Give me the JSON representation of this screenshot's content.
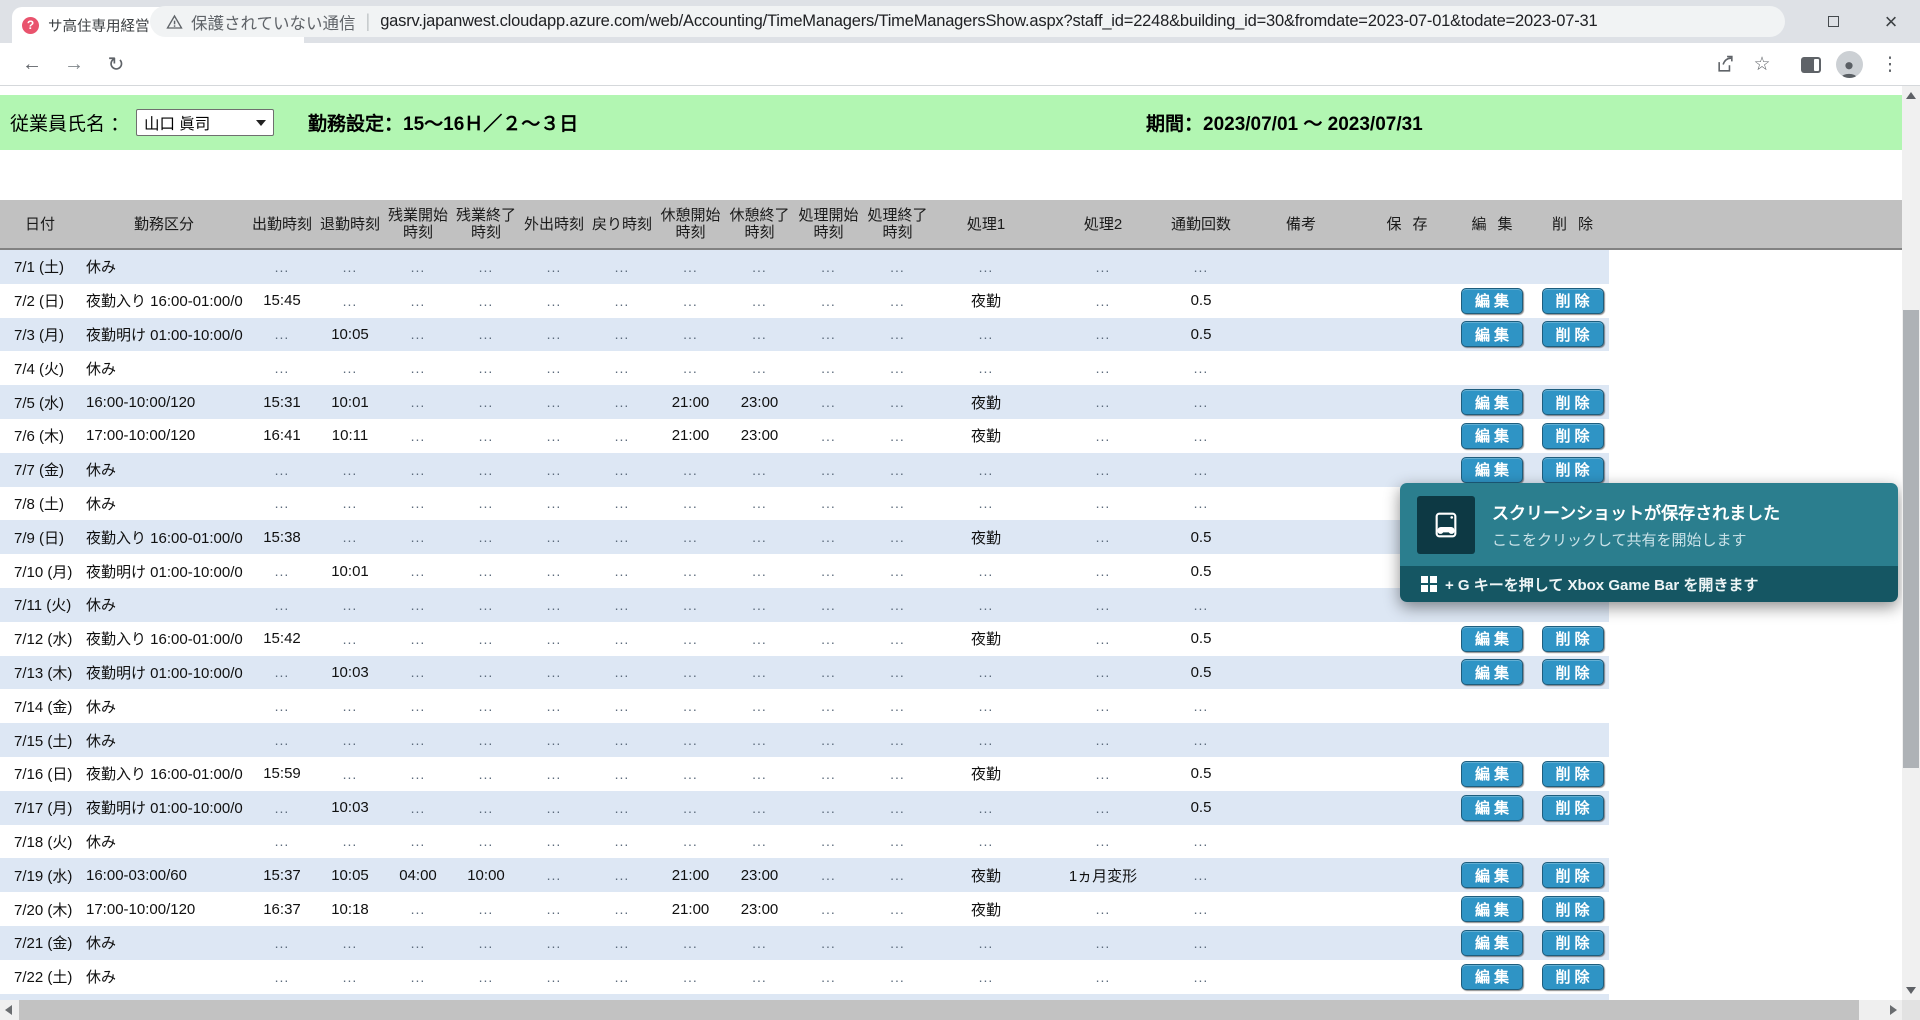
{
  "browser": {
    "tab_title": "サ高住専用経営ソフトさつきちゃん",
    "favicon_glyph": "?",
    "security_label": "保護されていない通信",
    "url": "gasrv.japanwest.cloudapp.azure.com/web/Accounting/TimeManagers/TimeManagersShow.aspx?staff_id=2248&building_id=30&fromdate=2023-07-01&todate=2023-07-31"
  },
  "greenbar": {
    "employee_label": "従業員氏名 ：",
    "employee_name": "山口 眞司",
    "shift_setting": "勤務設定：15～16Ｈ／２～３日",
    "period": "期間：2023/07/01 ～ 2023/07/31"
  },
  "table": {
    "columns": [
      "日付",
      "勤務区分",
      "出勤時刻",
      "退勤時刻",
      "残業開始時刻",
      "残業終了時刻",
      "外出時刻",
      "戻り時刻",
      "休憩開始時刻",
      "休憩終了時刻",
      "処理開始時刻",
      "処理終了時刻",
      "処理1",
      "処理2",
      "通勤回数",
      "備考",
      "保存",
      "編集",
      "削除"
    ],
    "edit_button": "編集",
    "delete_button": "削除",
    "rows": [
      {
        "cells": [
          "7/1 (土)",
          "休み",
          "...",
          "...",
          "...",
          "...",
          "...",
          "...",
          "...",
          "...",
          "...",
          "...",
          "...",
          "...",
          "...",
          ""
        ],
        "buttons": false
      },
      {
        "cells": [
          "7/2 (日)",
          "夜勤入り 16:00-01:00/0",
          "15:45",
          "...",
          "...",
          "...",
          "...",
          "...",
          "...",
          "...",
          "...",
          "...",
          "夜勤",
          "...",
          "0.5",
          ""
        ],
        "buttons": true
      },
      {
        "cells": [
          "7/3 (月)",
          "夜勤明け 01:00-10:00/0",
          "...",
          "10:05",
          "...",
          "...",
          "...",
          "...",
          "...",
          "...",
          "...",
          "...",
          "...",
          "...",
          "0.5",
          ""
        ],
        "buttons": true
      },
      {
        "cells": [
          "7/4 (火)",
          "休み",
          "...",
          "...",
          "...",
          "...",
          "...",
          "...",
          "...",
          "...",
          "...",
          "...",
          "...",
          "...",
          "...",
          ""
        ],
        "buttons": false
      },
      {
        "cells": [
          "7/5 (水)",
          "16:00-10:00/120",
          "15:31",
          "10:01",
          "...",
          "...",
          "...",
          "...",
          "21:00",
          "23:00",
          "...",
          "...",
          "夜勤",
          "...",
          "...",
          ""
        ],
        "buttons": true
      },
      {
        "cells": [
          "7/6 (木)",
          "17:00-10:00/120",
          "16:41",
          "10:11",
          "...",
          "...",
          "...",
          "...",
          "21:00",
          "23:00",
          "...",
          "...",
          "夜勤",
          "...",
          "...",
          ""
        ],
        "buttons": true
      },
      {
        "cells": [
          "7/7 (金)",
          "休み",
          "...",
          "...",
          "...",
          "...",
          "...",
          "...",
          "...",
          "...",
          "...",
          "...",
          "...",
          "...",
          "...",
          ""
        ],
        "buttons": true
      },
      {
        "cells": [
          "7/8 (土)",
          "休み",
          "...",
          "...",
          "...",
          "...",
          "...",
          "...",
          "...",
          "...",
          "...",
          "...",
          "...",
          "...",
          "...",
          ""
        ],
        "buttons": false
      },
      {
        "cells": [
          "7/9 (日)",
          "夜勤入り 16:00-01:00/0",
          "15:38",
          "...",
          "...",
          "...",
          "...",
          "...",
          "...",
          "...",
          "...",
          "...",
          "夜勤",
          "...",
          "0.5",
          ""
        ],
        "buttons": true
      },
      {
        "cells": [
          "7/10 (月)",
          "夜勤明け 01:00-10:00/0",
          "...",
          "10:01",
          "...",
          "...",
          "...",
          "...",
          "...",
          "...",
          "...",
          "...",
          "...",
          "...",
          "0.5",
          ""
        ],
        "buttons": true
      },
      {
        "cells": [
          "7/11 (火)",
          "休み",
          "...",
          "...",
          "...",
          "...",
          "...",
          "...",
          "...",
          "...",
          "...",
          "...",
          "...",
          "...",
          "...",
          ""
        ],
        "buttons": false
      },
      {
        "cells": [
          "7/12 (水)",
          "夜勤入り 16:00-01:00/0",
          "15:42",
          "...",
          "...",
          "...",
          "...",
          "...",
          "...",
          "...",
          "...",
          "...",
          "夜勤",
          "...",
          "0.5",
          ""
        ],
        "buttons": true
      },
      {
        "cells": [
          "7/13 (木)",
          "夜勤明け 01:00-10:00/0",
          "...",
          "10:03",
          "...",
          "...",
          "...",
          "...",
          "...",
          "...",
          "...",
          "...",
          "...",
          "...",
          "0.5",
          ""
        ],
        "buttons": true
      },
      {
        "cells": [
          "7/14 (金)",
          "休み",
          "...",
          "...",
          "...",
          "...",
          "...",
          "...",
          "...",
          "...",
          "...",
          "...",
          "...",
          "...",
          "...",
          ""
        ],
        "buttons": false
      },
      {
        "cells": [
          "7/15 (土)",
          "休み",
          "...",
          "...",
          "...",
          "...",
          "...",
          "...",
          "...",
          "...",
          "...",
          "...",
          "...",
          "...",
          "...",
          ""
        ],
        "buttons": false
      },
      {
        "cells": [
          "7/16 (日)",
          "夜勤入り 16:00-01:00/0",
          "15:59",
          "...",
          "...",
          "...",
          "...",
          "...",
          "...",
          "...",
          "...",
          "...",
          "夜勤",
          "...",
          "0.5",
          ""
        ],
        "buttons": true
      },
      {
        "cells": [
          "7/17 (月)",
          "夜勤明け 01:00-10:00/0",
          "...",
          "10:03",
          "...",
          "...",
          "...",
          "...",
          "...",
          "...",
          "...",
          "...",
          "...",
          "...",
          "0.5",
          ""
        ],
        "buttons": true
      },
      {
        "cells": [
          "7/18 (火)",
          "休み",
          "...",
          "...",
          "...",
          "...",
          "...",
          "...",
          "...",
          "...",
          "...",
          "...",
          "...",
          "...",
          "...",
          ""
        ],
        "buttons": false
      },
      {
        "cells": [
          "7/19 (水)",
          "16:00-03:00/60",
          "15:37",
          "10:05",
          "04:00",
          "10:00",
          "...",
          "...",
          "21:00",
          "23:00",
          "...",
          "...",
          "夜勤",
          "1ヵ月変形",
          "...",
          ""
        ],
        "buttons": true
      },
      {
        "cells": [
          "7/20 (木)",
          "17:00-10:00/120",
          "16:37",
          "10:18",
          "...",
          "...",
          "...",
          "...",
          "21:00",
          "23:00",
          "...",
          "...",
          "夜勤",
          "...",
          "...",
          ""
        ],
        "buttons": true
      },
      {
        "cells": [
          "7/21 (金)",
          "休み",
          "...",
          "...",
          "...",
          "...",
          "...",
          "...",
          "...",
          "...",
          "...",
          "...",
          "...",
          "...",
          "...",
          ""
        ],
        "buttons": true
      },
      {
        "cells": [
          "7/22 (土)",
          "休み",
          "...",
          "...",
          "...",
          "...",
          "...",
          "...",
          "...",
          "...",
          "...",
          "...",
          "...",
          "...",
          "...",
          ""
        ],
        "buttons": true
      }
    ]
  },
  "notification": {
    "title": "スクリーンショットが保存されました",
    "subtitle": "ここをクリックして共有を開始します",
    "footer_text": "+ G キーを押して Xbox Game Bar を開きます"
  }
}
